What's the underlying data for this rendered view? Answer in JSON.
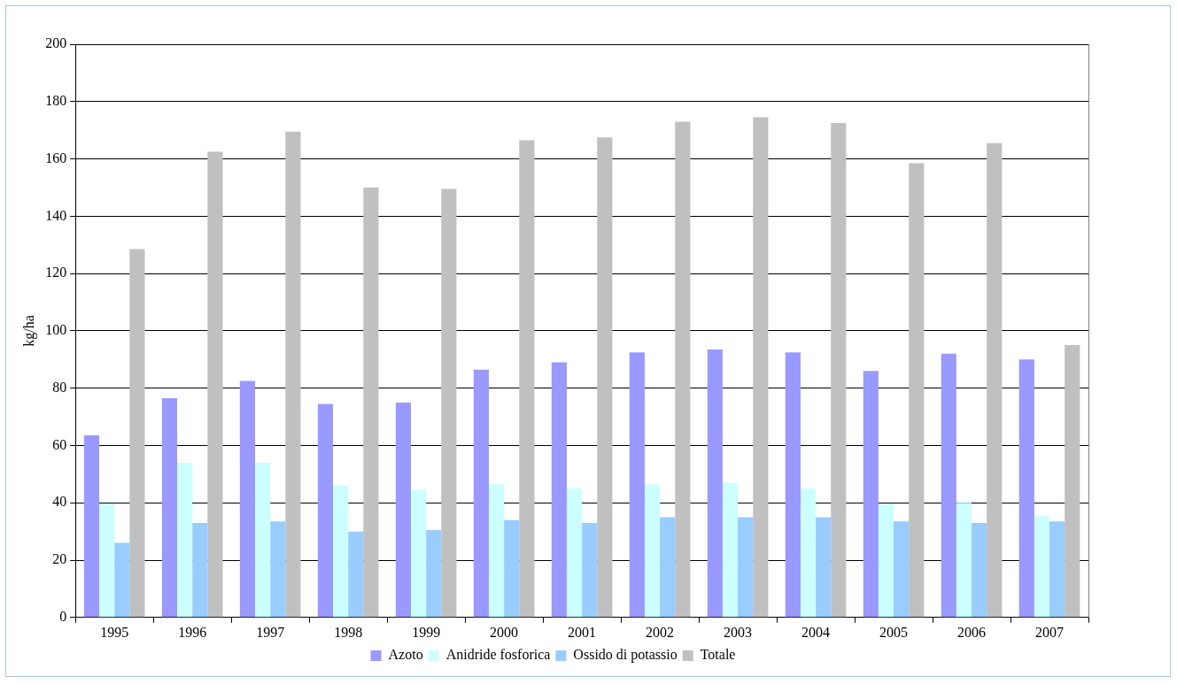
{
  "chart_data": {
    "type": "bar",
    "ylabel": "kg/ha",
    "categories": [
      "1995",
      "1996",
      "1997",
      "1998",
      "1999",
      "2000",
      "2001",
      "2002",
      "2003",
      "2004",
      "2005",
      "2006",
      "2007"
    ],
    "series": [
      {
        "name": "Azoto",
        "color": "#9999ff",
        "values": [
          63.5,
          76.5,
          82.5,
          74.5,
          75,
          86.5,
          89,
          92.5,
          93.5,
          92.5,
          86,
          92,
          90
        ]
      },
      {
        "name": "Anidride fosforica",
        "color": "#ccffff",
        "values": [
          39.5,
          54,
          54,
          46,
          44.5,
          46.5,
          45,
          46.5,
          47,
          45,
          39.5,
          40,
          35.5
        ]
      },
      {
        "name": "Ossido di potassio",
        "color": "#99ccff",
        "values": [
          26,
          33,
          33.5,
          30,
          30.5,
          34,
          33,
          35,
          35,
          35,
          33.5,
          33,
          33.5
        ]
      },
      {
        "name": "Totale",
        "color": "#c0c0c0",
        "values": [
          128.5,
          162.5,
          169.5,
          150,
          149.5,
          166.5,
          167.5,
          173,
          174.5,
          172.5,
          158.5,
          165.5,
          95
        ]
      }
    ],
    "ylim": [
      0,
      200
    ],
    "yticks": [
      0,
      20,
      40,
      60,
      80,
      100,
      120,
      140,
      160,
      180,
      200
    ],
    "grid": "y",
    "legend": "bottom"
  }
}
